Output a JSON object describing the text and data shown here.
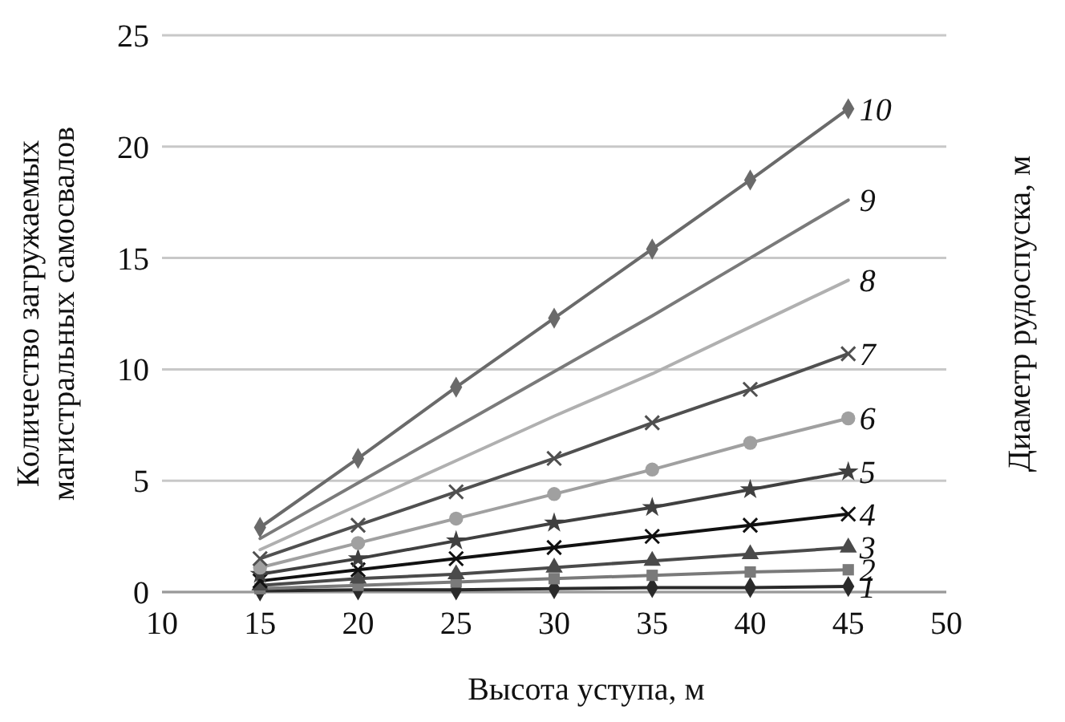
{
  "chart_data": {
    "type": "line",
    "xlabel": "Высота уступа, м",
    "ylabel": "Количество загружаемых магистральных самосвалов",
    "y2label": "Диаметр рудоспуска, м",
    "x": [
      15,
      20,
      25,
      30,
      35,
      40,
      45
    ],
    "xlim": [
      10,
      50
    ],
    "xticks": [
      10,
      15,
      20,
      25,
      30,
      35,
      40,
      45,
      50
    ],
    "ylim": [
      0,
      25
    ],
    "yticks": [
      0,
      5,
      10,
      15,
      20,
      25
    ],
    "grid": "y",
    "series": [
      {
        "name": "1",
        "color": "#2a2a2a",
        "marker": "diamond",
        "values": [
          0.05,
          0.1,
          0.1,
          0.15,
          0.2,
          0.2,
          0.25
        ]
      },
      {
        "name": "2",
        "color": "#7a7a7a",
        "marker": "square",
        "values": [
          0.15,
          0.3,
          0.45,
          0.6,
          0.75,
          0.9,
          1.0
        ]
      },
      {
        "name": "3",
        "color": "#4a4a4a",
        "marker": "triangle",
        "values": [
          0.3,
          0.6,
          0.8,
          1.1,
          1.4,
          1.7,
          2.0
        ]
      },
      {
        "name": "4",
        "color": "#111111",
        "marker": "cross",
        "values": [
          0.5,
          1.0,
          1.5,
          2.0,
          2.5,
          3.0,
          3.5
        ]
      },
      {
        "name": "5",
        "color": "#404040",
        "marker": "star",
        "values": [
          0.8,
          1.5,
          2.3,
          3.1,
          3.8,
          4.6,
          5.4
        ]
      },
      {
        "name": "6",
        "color": "#a0a0a0",
        "marker": "circle",
        "values": [
          1.1,
          2.2,
          3.3,
          4.4,
          5.5,
          6.7,
          7.8
        ]
      },
      {
        "name": "7",
        "color": "#505050",
        "marker": "cross",
        "values": [
          1.5,
          3.0,
          4.5,
          6.0,
          7.6,
          9.1,
          10.7
        ]
      },
      {
        "name": "8",
        "color": "#b0b0b0",
        "marker": "none",
        "values": [
          1.9,
          3.9,
          5.9,
          7.9,
          9.8,
          11.9,
          14.0
        ]
      },
      {
        "name": "9",
        "color": "#7a7a7a",
        "marker": "none",
        "values": [
          2.4,
          4.9,
          7.4,
          9.9,
          12.4,
          15.0,
          17.6
        ]
      },
      {
        "name": "10",
        "color": "#6a6a6a",
        "marker": "diamond",
        "values": [
          2.9,
          6.0,
          9.2,
          12.3,
          15.4,
          18.5,
          21.7
        ]
      }
    ]
  }
}
